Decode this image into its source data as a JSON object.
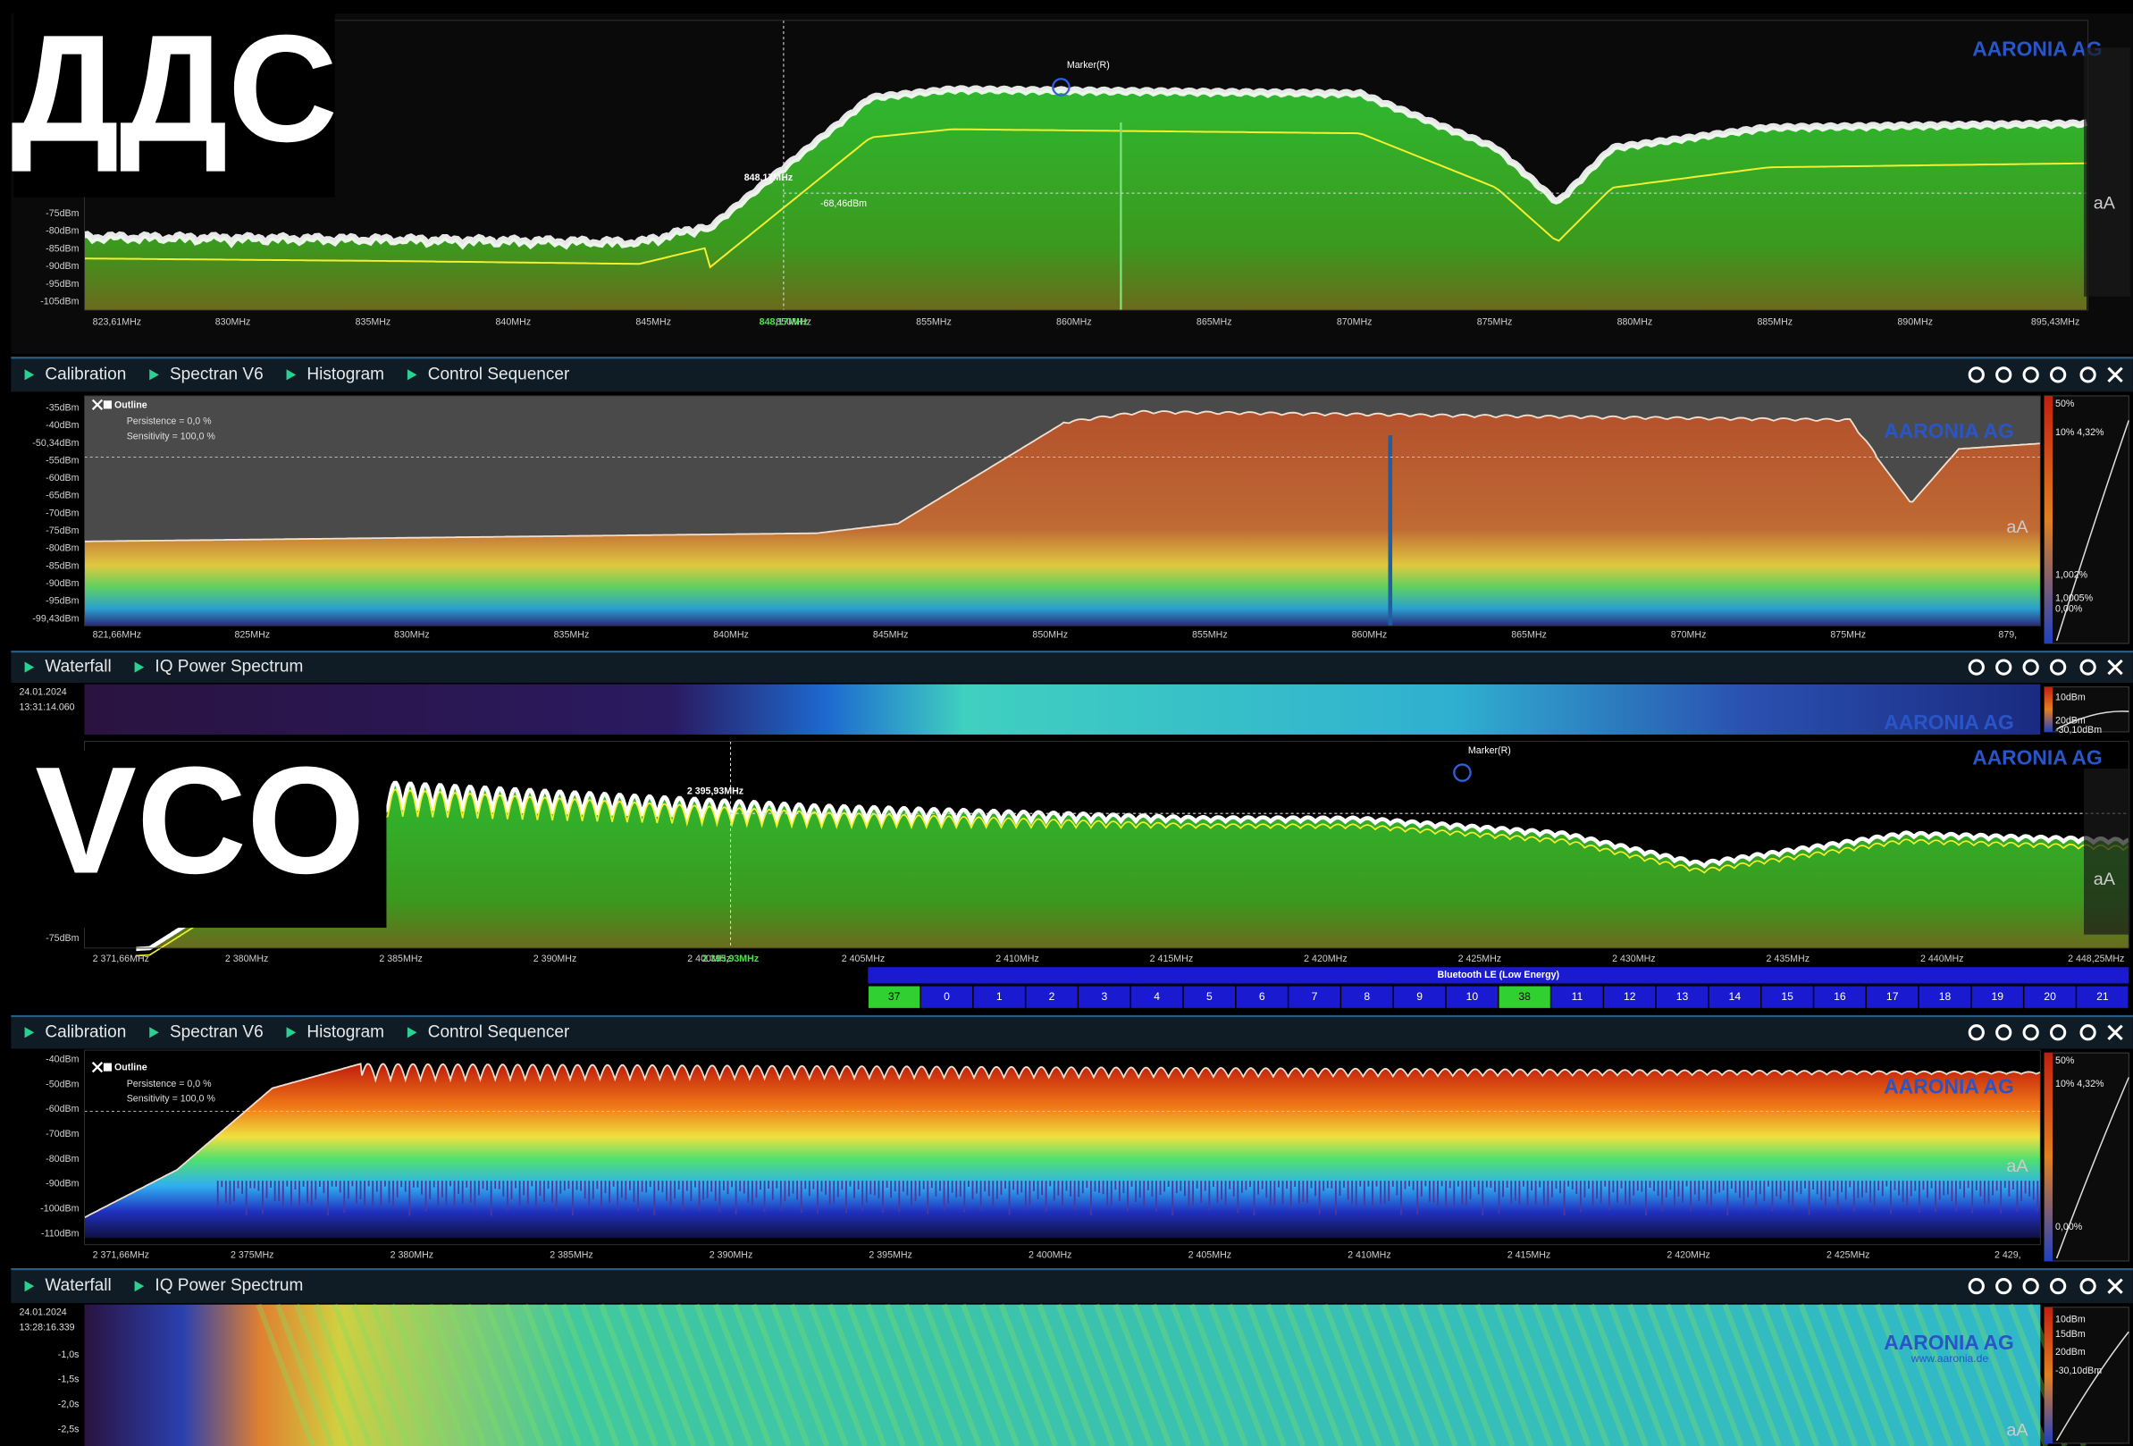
{
  "overlay_labels": [
    "ДДС",
    "VCO"
  ],
  "panels": [
    {
      "kind": "spectrum",
      "logo": "AARONIA AG",
      "tool": "aA",
      "marker": {
        "name": "Marker(R)",
        "freq": "848,17MHz",
        "level": "-68,46dBm",
        "axis_freq": "848,17MHz"
      },
      "y_labels": [
        "-75dBm",
        "-80dBm",
        "-85dBm",
        "-90dBm",
        "-95dBm",
        "-105dBm"
      ],
      "x_labels": [
        "823,61MHz",
        "830MHz",
        "835MHz",
        "840MHz",
        "845MHz",
        "850MHz",
        "855MHz",
        "860MHz",
        "865MHz",
        "870MHz",
        "875MHz",
        "880MHz",
        "885MHz",
        "890MHz",
        "895,43MHz"
      ]
    },
    {
      "kind": "tabs",
      "tabs": [
        "Calibration",
        "Spectran V6",
        "Histogram",
        "Control Sequencer"
      ]
    },
    {
      "kind": "histogram",
      "logo": "AARONIA AG",
      "tool": "aA",
      "legend": {
        "title": "Outline",
        "persistence": "Persistence = 0,0 %",
        "sensitivity": "Sensitivity = 100,0 %"
      },
      "y_labels": [
        "-35dBm",
        "-40dBm",
        "-50,34dBm",
        "-55dBm",
        "-60dBm",
        "-65dBm",
        "-70dBm",
        "-75dBm",
        "-80dBm",
        "-85dBm",
        "-90dBm",
        "-95dBm",
        "-99,43dBm"
      ],
      "x_labels": [
        "821,66MHz",
        "825MHz",
        "830MHz",
        "835MHz",
        "840MHz",
        "845MHz",
        "850MHz",
        "855MHz",
        "860MHz",
        "865MHz",
        "870MHz",
        "875MHz",
        "879,"
      ],
      "scale_labels": [
        "50%",
        "10% 4,32%",
        "1,002%",
        "1,0005%",
        "0,00%"
      ]
    },
    {
      "kind": "tabs",
      "tabs": [
        "Waterfall",
        "IQ Power Spectrum"
      ]
    },
    {
      "kind": "waterfall",
      "logo": "AARONIA AG",
      "date": "24.01.2024",
      "time": "13:31:14.060",
      "scale_labels": [
        "10dBm",
        "20dBm",
        "-30,10dBm"
      ]
    },
    {
      "kind": "spectrum",
      "logo": "AARONIA AG",
      "tool": "aA",
      "marker": {
        "name": "Marker(R)",
        "freq": "2 395,93MHz",
        "axis_freq": "2 395,93MHz"
      },
      "y_labels": [
        "-75dBm"
      ],
      "x_labels": [
        "2 371,66MHz",
        "2 380MHz",
        "2 385MHz",
        "2 390MHz",
        "2 400MHz",
        "2 405MHz",
        "2 410MHz",
        "2 415MHz",
        "2 420MHz",
        "2 425MHz",
        "2 430MHz",
        "2 435MHz",
        "2 440MHz",
        "2 448,25MHz"
      ]
    },
    {
      "kind": "channels",
      "title": "Bluetooth LE (Low Energy)",
      "channels": [
        "37",
        "0",
        "1",
        "2",
        "3",
        "4",
        "5",
        "6",
        "7",
        "8",
        "9",
        "10",
        "38",
        "11",
        "12",
        "13",
        "14",
        "15",
        "16",
        "17",
        "18",
        "19",
        "20",
        "21"
      ],
      "active": [
        0,
        12
      ]
    },
    {
      "kind": "tabs",
      "tabs": [
        "Calibration",
        "Spectran V6",
        "Histogram",
        "Control Sequencer"
      ]
    },
    {
      "kind": "histogram",
      "logo": "AARONIA AG",
      "tool": "aA",
      "legend": {
        "title": "Outline",
        "persistence": "Persistence = 0,0 %",
        "sensitivity": "Sensitivity = 100,0 %"
      },
      "y_labels": [
        "-40dBm",
        "-50dBm",
        "-60dBm",
        "-70dBm",
        "-80dBm",
        "-90dBm",
        "-100dBm",
        "-110dBm"
      ],
      "x_labels": [
        "2 371,66MHz",
        "2 375MHz",
        "2 380MHz",
        "2 385MHz",
        "2 390MHz",
        "2 395MHz",
        "2 400MHz",
        "2 405MHz",
        "2 410MHz",
        "2 415MHz",
        "2 420MHz",
        "2 425MHz",
        "2 429,"
      ],
      "scale_labels": [
        "50%",
        "10% 4,32%",
        "0,00%"
      ]
    },
    {
      "kind": "tabs",
      "tabs": [
        "Waterfall",
        "IQ Power Spectrum"
      ]
    },
    {
      "kind": "waterfall",
      "logo": "AARONIA AG",
      "website": "www.aaronia.de",
      "tool": "aA",
      "date": "24.01.2024",
      "time": "13:28:16.339",
      "time_labels": [
        "-1,0s",
        "-1,5s",
        "-2,0s",
        "-2,5s"
      ],
      "scale_labels": [
        "10dBm",
        "15dBm",
        "20dBm",
        "-30,10dBm"
      ]
    }
  ]
}
